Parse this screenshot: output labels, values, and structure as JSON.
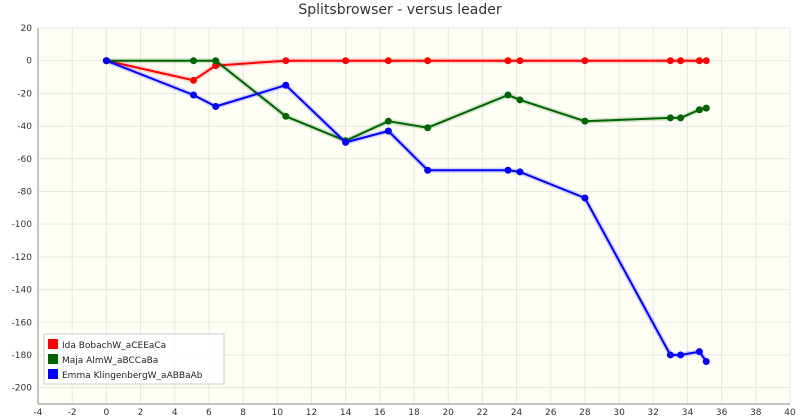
{
  "chart_data": {
    "type": "line",
    "title": "Splitsbrowser - versus leader",
    "xlabel": "",
    "ylabel": "",
    "xlim": [
      -4,
      40
    ],
    "ylim": [
      -210,
      20
    ],
    "x_ticks": [
      -4,
      -2,
      0,
      2,
      4,
      6,
      8,
      10,
      12,
      14,
      16,
      18,
      20,
      22,
      24,
      26,
      28,
      30,
      32,
      34,
      36,
      38,
      40
    ],
    "y_ticks": [
      20,
      0,
      -20,
      -40,
      -60,
      -80,
      -100,
      -120,
      -140,
      -160,
      -180,
      -200
    ],
    "grid": true,
    "legend_position": "bottom-left",
    "colors": {
      "background": "#fffef5",
      "grid": "#e7e7e7",
      "axis": "#888888"
    },
    "series": [
      {
        "name": "Ida BobachW_aCEEaCa",
        "color": "#ff0000",
        "points": [
          [
            0,
            0
          ],
          [
            5.1,
            -12
          ],
          [
            6.4,
            -3
          ],
          [
            10.5,
            0
          ],
          [
            14,
            0
          ],
          [
            16.5,
            0
          ],
          [
            18.8,
            0
          ],
          [
            23.5,
            0
          ],
          [
            24.2,
            0
          ],
          [
            28,
            0
          ],
          [
            33,
            0
          ],
          [
            33.6,
            0
          ],
          [
            34.7,
            0
          ],
          [
            35.1,
            0
          ]
        ]
      },
      {
        "name": "Maja AlmW_aBCCaBa",
        "color": "#006400",
        "points": [
          [
            0,
            0
          ],
          [
            5.1,
            0
          ],
          [
            6.4,
            0
          ],
          [
            10.5,
            -34
          ],
          [
            14,
            -49
          ],
          [
            16.5,
            -37
          ],
          [
            18.8,
            -41
          ],
          [
            23.5,
            -21
          ],
          [
            24.2,
            -24
          ],
          [
            28,
            -37
          ],
          [
            33,
            -35
          ],
          [
            33.6,
            -35
          ],
          [
            34.7,
            -30
          ],
          [
            35.1,
            -29
          ]
        ]
      },
      {
        "name": "Emma KlingenbergW_aABBaAb",
        "color": "#0000ff",
        "points": [
          [
            0,
            0
          ],
          [
            5.1,
            -21
          ],
          [
            6.4,
            -28
          ],
          [
            10.5,
            -15
          ],
          [
            14,
            -50
          ],
          [
            16.5,
            -43
          ],
          [
            18.8,
            -67
          ],
          [
            23.5,
            -67
          ],
          [
            24.2,
            -68
          ],
          [
            28,
            -84
          ],
          [
            33,
            -180
          ],
          [
            33.6,
            -180
          ],
          [
            34.7,
            -178
          ],
          [
            35.1,
            -184
          ]
        ]
      }
    ]
  }
}
